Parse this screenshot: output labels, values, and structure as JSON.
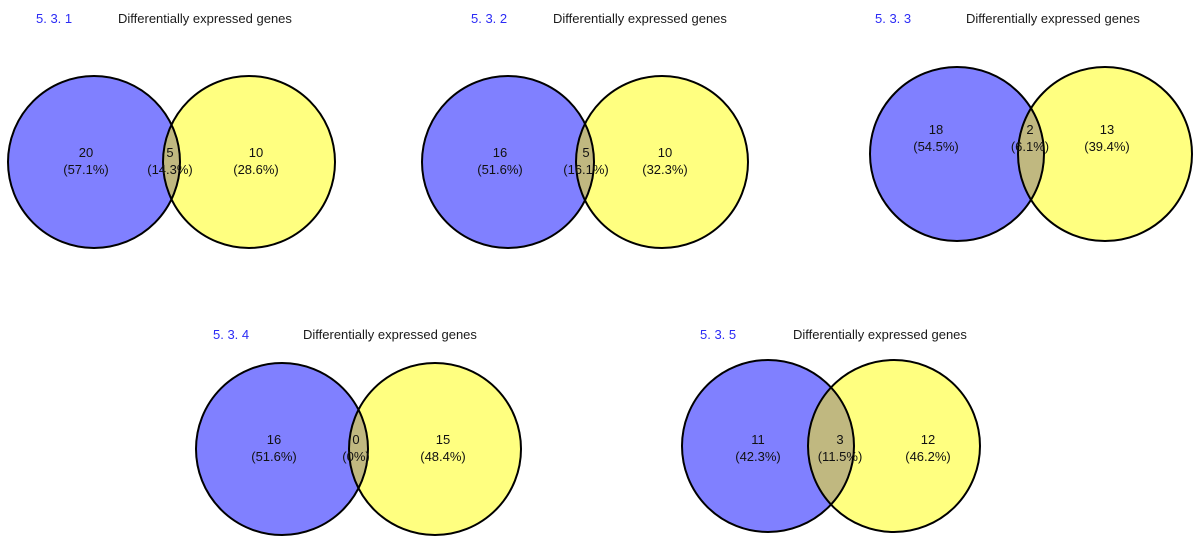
{
  "colors": {
    "left_set": "#8080ff",
    "right_set": "#ffff80",
    "overlap": "#c0b880",
    "label_blue": "#2b2bf5",
    "stroke": "#000000"
  },
  "diagrams": [
    {
      "id": "5. 3. 1",
      "title": "Differentially expressed genes",
      "left": {
        "count": "20",
        "pct": "(57.1%)"
      },
      "overlap": {
        "count": "5",
        "pct": "(14.3%)"
      },
      "right": {
        "count": "10",
        "pct": "(28.6%)"
      }
    },
    {
      "id": "5. 3. 2",
      "title": "Differentially expressed genes",
      "left": {
        "count": "16",
        "pct": "(51.6%)"
      },
      "overlap": {
        "count": "5",
        "pct": "(16.1%)"
      },
      "right": {
        "count": "10",
        "pct": "(32.3%)"
      }
    },
    {
      "id": "5. 3. 3",
      "title": "Differentially expressed genes",
      "left": {
        "count": "18",
        "pct": "(54.5%)"
      },
      "overlap": {
        "count": "2",
        "pct": "(6.1%)"
      },
      "right": {
        "count": "13",
        "pct": "(39.4%)"
      }
    },
    {
      "id": "5. 3. 4",
      "title": "Differentially expressed genes",
      "left": {
        "count": "16",
        "pct": "(51.6%)"
      },
      "overlap": {
        "count": "0",
        "pct": "(0%)"
      },
      "right": {
        "count": "15",
        "pct": "(48.4%)"
      }
    },
    {
      "id": "5. 3. 5",
      "title": "Differentially expressed genes",
      "left": {
        "count": "11",
        "pct": "(42.3%)"
      },
      "overlap": {
        "count": "3",
        "pct": "(11.5%)"
      },
      "right": {
        "count": "12",
        "pct": "(46.2%)"
      }
    }
  ]
}
